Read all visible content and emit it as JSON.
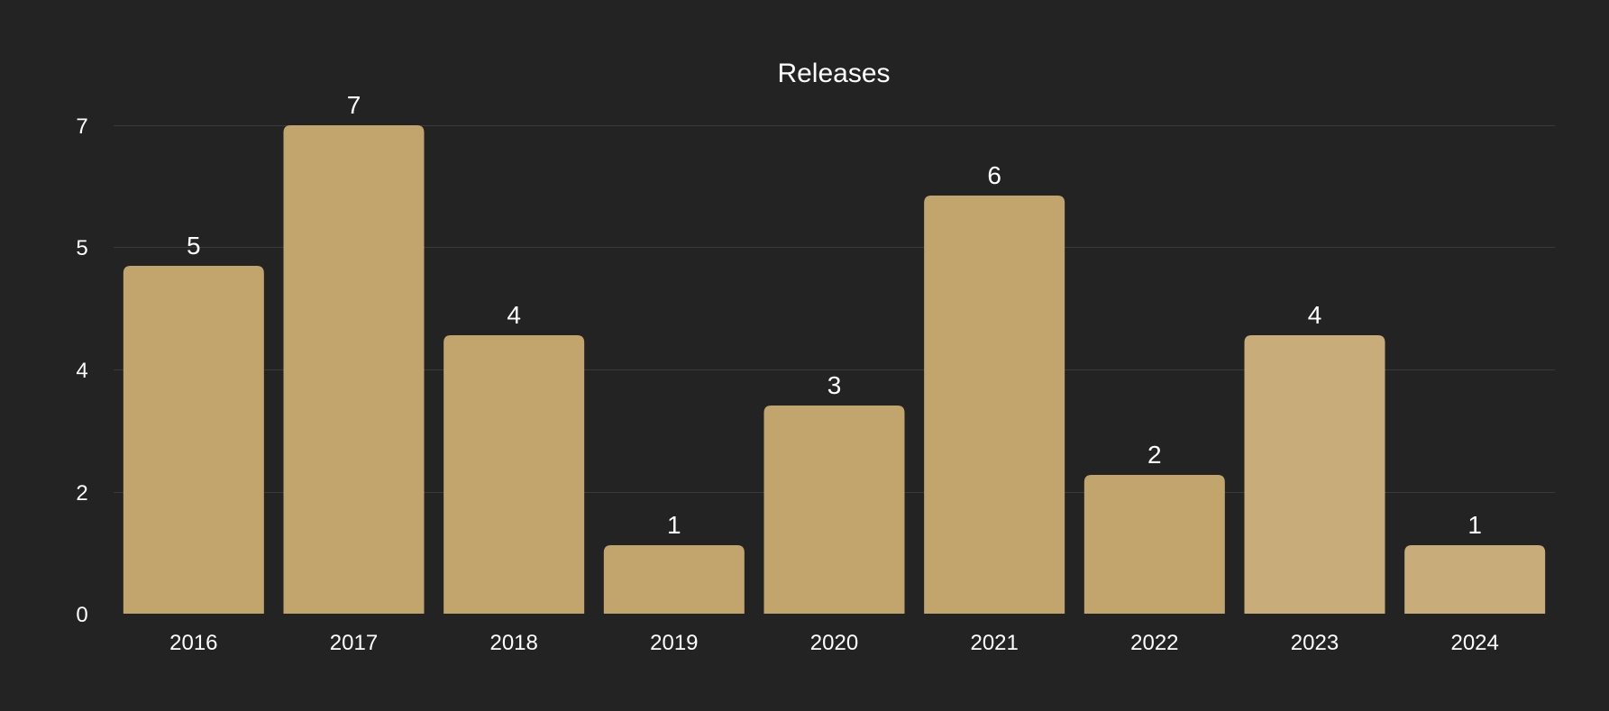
{
  "chart_data": {
    "type": "bar",
    "title": "Releases",
    "xlabel": "",
    "ylabel": "",
    "categories": [
      "2016",
      "2017",
      "2018",
      "2019",
      "2020",
      "2021",
      "2022",
      "2023",
      "2024"
    ],
    "values": [
      5,
      7,
      4,
      1,
      3,
      6,
      2,
      4,
      1
    ],
    "y_ticks": [
      "0",
      "2",
      "4",
      "5",
      "7"
    ],
    "grid": true,
    "legend": "none",
    "colors": {
      "background": "#232323",
      "bar": "#c2a56d",
      "bar_highlight": "#c8ad7b",
      "text": "#ffffff",
      "grid": "#3a3a3a"
    }
  }
}
